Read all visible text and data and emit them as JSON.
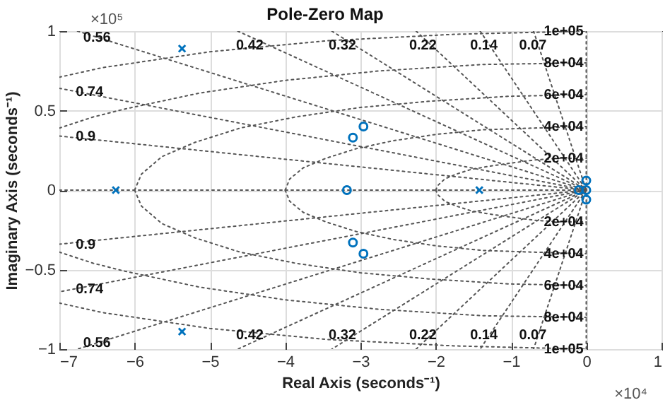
{
  "chart_data": {
    "type": "scatter",
    "title": "Pole-Zero Map",
    "xlabel": "Real Axis (seconds⁻¹)",
    "ylabel": "Imaginary Axis (seconds⁻¹)",
    "xlim": [
      -7,
      1
    ],
    "xticks": [
      -7,
      -6,
      -5,
      -4,
      -3,
      -2,
      -1,
      0,
      1
    ],
    "ylim": [
      -1,
      1
    ],
    "yticks": [
      -1,
      -0.5,
      0,
      0.5,
      1
    ],
    "grid": true,
    "series": [
      {
        "type": "line",
        "color": "#555555",
        "line_style": "dotted",
        "marker": "none",
        "x": [
          -7,
          0
        ],
        "values": [
          0,
          0
        ]
      },
      {
        "type": "line",
        "color": "#555555",
        "line_style": "dotted",
        "marker": "none",
        "x": [
          0,
          0
        ],
        "values": [
          -1,
          1
        ]
      },
      {
        "type": "line",
        "color": "#555555",
        "line_style": "dotted",
        "marker": "none",
        "x": [
          -2,
          -1.97,
          -1.88,
          -1.73,
          -1.53,
          -1.29,
          -1,
          -0.68,
          -0.35,
          0
        ],
        "values": [
          0,
          0.03,
          0.07,
          0.1,
          0.13,
          0.15,
          0.17,
          0.19,
          0.2,
          0.2
        ]
      },
      {
        "type": "line",
        "color": "#555555",
        "line_style": "dotted",
        "marker": "none",
        "x": [
          -2,
          -1.97,
          -1.88,
          -1.73,
          -1.53,
          -1.29,
          -1,
          -0.68,
          -0.35,
          0
        ],
        "values": [
          0,
          -0.03,
          -0.07,
          -0.1,
          -0.13,
          -0.15,
          -0.17,
          -0.19,
          -0.2,
          -0.2
        ]
      },
      {
        "type": "line",
        "color": "#555555",
        "line_style": "dotted",
        "marker": "none",
        "x": [
          -4,
          -3.94,
          -3.76,
          -3.46,
          -3.06,
          -2.57,
          -2,
          -1.37,
          -0.7,
          0
        ],
        "values": [
          0,
          0.07,
          0.14,
          0.2,
          0.26,
          0.31,
          0.35,
          0.38,
          0.39,
          0.4
        ]
      },
      {
        "type": "line",
        "color": "#555555",
        "line_style": "dotted",
        "marker": "none",
        "x": [
          -4,
          -3.94,
          -3.76,
          -3.46,
          -3.06,
          -2.57,
          -2,
          -1.37,
          -0.7,
          0
        ],
        "values": [
          0,
          -0.07,
          -0.14,
          -0.2,
          -0.26,
          -0.31,
          -0.35,
          -0.38,
          -0.39,
          -0.4
        ]
      },
      {
        "type": "line",
        "color": "#555555",
        "line_style": "dotted",
        "marker": "none",
        "x": [
          -6,
          -5.91,
          -5.64,
          -5.2,
          -4.6,
          -3.86,
          -3,
          -2.05,
          -1.04,
          0
        ],
        "values": [
          0,
          0.1,
          0.21,
          0.3,
          0.39,
          0.46,
          0.52,
          0.56,
          0.59,
          0.6
        ]
      },
      {
        "type": "line",
        "color": "#555555",
        "line_style": "dotted",
        "marker": "none",
        "x": [
          -6,
          -5.91,
          -5.64,
          -5.2,
          -4.6,
          -3.86,
          -3,
          -2.05,
          -1.04,
          0
        ],
        "values": [
          0,
          -0.1,
          -0.21,
          -0.3,
          -0.39,
          -0.46,
          -0.52,
          -0.56,
          -0.59,
          -0.6
        ]
      },
      {
        "type": "line",
        "color": "#555555",
        "line_style": "dotted",
        "marker": "none",
        "x": [
          -7,
          -6.55,
          -6.13,
          -5.14,
          -4,
          -2.74,
          -1.39,
          0
        ],
        "values": [
          0.39,
          0.46,
          0.51,
          0.61,
          0.69,
          0.75,
          0.79,
          0.8
        ]
      },
      {
        "type": "line",
        "color": "#555555",
        "line_style": "dotted",
        "marker": "none",
        "x": [
          -7,
          -6.55,
          -6.13,
          -5.14,
          -4,
          -2.74,
          -1.39,
          0
        ],
        "values": [
          -0.39,
          -0.46,
          -0.51,
          -0.61,
          -0.69,
          -0.75,
          -0.79,
          -0.8
        ]
      },
      {
        "type": "line",
        "color": "#555555",
        "line_style": "dotted",
        "marker": "none",
        "x": [
          -7,
          -6.43,
          -5,
          -3.42,
          -1.74,
          0
        ],
        "values": [
          0.71,
          0.77,
          0.87,
          0.94,
          0.98,
          1
        ]
      },
      {
        "type": "line",
        "color": "#555555",
        "line_style": "dotted",
        "marker": "none",
        "x": [
          -7,
          -6.43,
          -5,
          -3.42,
          -1.74,
          0
        ],
        "values": [
          -0.71,
          -0.77,
          -0.87,
          -0.94,
          -0.98,
          -1
        ]
      },
      {
        "type": "line",
        "color": "#555555",
        "line_style": "dotted",
        "marker": "none",
        "x": [
          -7,
          0,
          -7
        ],
        "values": [
          0.34,
          0,
          -0.34
        ]
      },
      {
        "type": "line",
        "color": "#555555",
        "line_style": "dotted",
        "marker": "none",
        "x": [
          -7,
          0,
          -7
        ],
        "values": [
          0.64,
          0,
          -0.64
        ]
      },
      {
        "type": "line",
        "color": "#555555",
        "line_style": "dotted",
        "marker": "none",
        "x": [
          -6.76,
          0,
          -6.76
        ],
        "values": [
          1,
          0,
          -1
        ]
      },
      {
        "type": "line",
        "color": "#555555",
        "line_style": "dotted",
        "marker": "none",
        "x": [
          -4.63,
          0,
          -4.63
        ],
        "values": [
          1,
          0,
          -1
        ]
      },
      {
        "type": "line",
        "color": "#555555",
        "line_style": "dotted",
        "marker": "none",
        "x": [
          -3.38,
          0,
          -3.38
        ],
        "values": [
          1,
          0,
          -1
        ]
      },
      {
        "type": "line",
        "color": "#555555",
        "line_style": "dotted",
        "marker": "none",
        "x": [
          -2.26,
          0,
          -2.26
        ],
        "values": [
          1,
          0,
          -1
        ]
      },
      {
        "type": "line",
        "color": "#555555",
        "line_style": "dotted",
        "marker": "none",
        "x": [
          -1.41,
          0,
          -1.41
        ],
        "values": [
          1,
          0,
          -1
        ]
      },
      {
        "type": "line",
        "color": "#555555",
        "line_style": "dotted",
        "marker": "none",
        "x": [
          -0.7,
          0,
          -0.7
        ],
        "values": [
          1,
          0,
          -1
        ]
      },
      {
        "color": "#0072bd",
        "marker": "cross",
        "x": [
          -5.37,
          -5.37,
          -6.25,
          -1.42
        ],
        "values": [
          0.89,
          -0.89,
          0,
          0
        ]
      },
      {
        "color": "#0072bd",
        "marker": "circle",
        "x": [
          -2.96,
          -2.96
        ],
        "values": [
          0.4,
          -0.4
        ]
      },
      {
        "color": "#0072bd",
        "marker": "circle",
        "x": [
          -3.1,
          -3.1,
          -3.18,
          0,
          0,
          0,
          -0.1
        ],
        "values": [
          0.33,
          -0.33,
          0,
          0.06,
          -0.06,
          0,
          0
        ]
      }
    ],
    "annotations": [
      "×10⁵",
      "×10⁴",
      {
        "text": "0.56",
        "x": -6.5,
        "y": 0.96
      },
      {
        "text": "0.42",
        "x": -4.47,
        "y": 0.91
      },
      {
        "text": "0.32",
        "x": -3.24,
        "y": 0.91
      },
      {
        "text": "0.22",
        "x": -2.17,
        "y": 0.91
      },
      {
        "text": "0.14",
        "x": -1.36,
        "y": 0.91
      },
      {
        "text": "0.07",
        "x": -0.71,
        "y": 0.91
      },
      {
        "text": "0.74",
        "x": -6.6,
        "y": 0.62
      },
      {
        "text": "0.9",
        "x": -6.65,
        "y": 0.34
      },
      {
        "text": "0.56",
        "x": -6.5,
        "y": -0.96
      },
      {
        "text": "0.42",
        "x": -4.47,
        "y": -0.91
      },
      {
        "text": "0.32",
        "x": -3.24,
        "y": -0.91
      },
      {
        "text": "0.22",
        "x": -2.17,
        "y": -0.91
      },
      {
        "text": "0.14",
        "x": -1.36,
        "y": -0.91
      },
      {
        "text": "0.07",
        "x": -0.71,
        "y": -0.91
      },
      {
        "text": "0.74",
        "x": -6.6,
        "y": -0.62
      },
      {
        "text": "0.9",
        "x": -6.65,
        "y": -0.34
      },
      {
        "text": "1e+05",
        "x": -0.3,
        "y": 1
      },
      {
        "text": "8e+04",
        "x": -0.3,
        "y": 0.8
      },
      {
        "text": "6e+04",
        "x": -0.3,
        "y": 0.6
      },
      {
        "text": "4e+04",
        "x": -0.3,
        "y": 0.4
      },
      {
        "text": "2e+04",
        "x": -0.3,
        "y": 0.2
      },
      {
        "text": "2e+04",
        "x": -0.3,
        "y": -0.2
      },
      {
        "text": "4e+04",
        "x": -0.3,
        "y": -0.4
      },
      {
        "text": "6e+04",
        "x": -0.3,
        "y": -0.6
      },
      {
        "text": "8e+04",
        "x": -0.3,
        "y": -0.8
      },
      {
        "text": "1e+05",
        "x": -0.3,
        "y": -1
      }
    ]
  }
}
